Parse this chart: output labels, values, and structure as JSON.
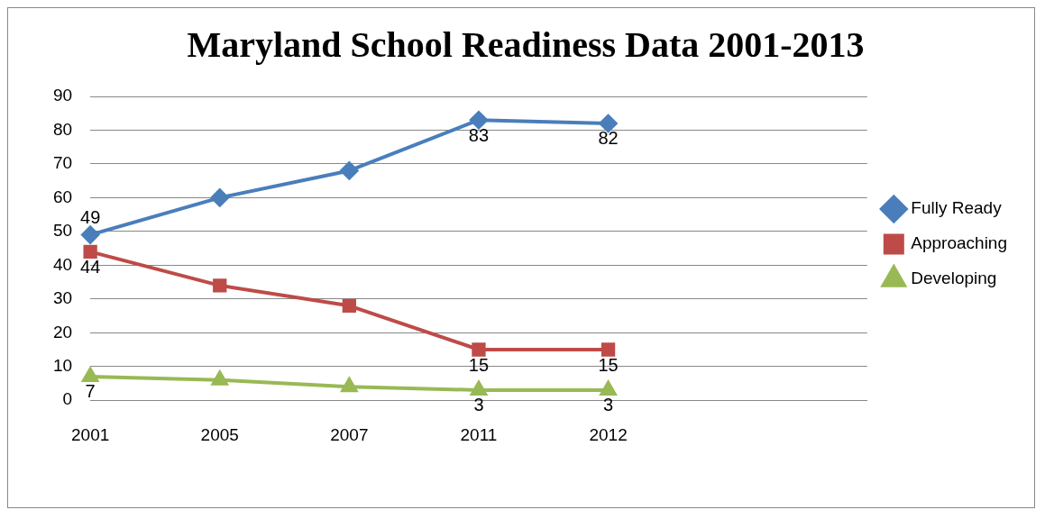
{
  "chart_data": {
    "type": "line",
    "title": "Maryland School Readiness Data 2001-2013",
    "categories": [
      "2001",
      "2005",
      "2007",
      "2011",
      "2012",
      null,
      null
    ],
    "series": [
      {
        "name": "Fully Ready",
        "color": "#4a7ebb",
        "marker": "diamond",
        "values": [
          49,
          60,
          68,
          83,
          82,
          null,
          null
        ],
        "value_labels": [
          "49",
          null,
          null,
          "83",
          "82",
          null,
          null
        ]
      },
      {
        "name": "Approaching",
        "color": "#be4b48",
        "marker": "square",
        "values": [
          44,
          34,
          28,
          15,
          15,
          null,
          null
        ],
        "value_labels": [
          "44",
          null,
          null,
          "15",
          "15",
          null,
          null
        ]
      },
      {
        "name": "Developing",
        "color": "#98b954",
        "marker": "triangle",
        "values": [
          7,
          6,
          4,
          3,
          3,
          null,
          null
        ],
        "value_labels": [
          "7",
          null,
          null,
          "3",
          "3",
          null,
          null
        ]
      }
    ],
    "ylim": [
      0,
      90
    ],
    "yticks": [
      0,
      10,
      20,
      30,
      40,
      50,
      60,
      70,
      80,
      90
    ],
    "grid": "y",
    "legend": "right"
  }
}
